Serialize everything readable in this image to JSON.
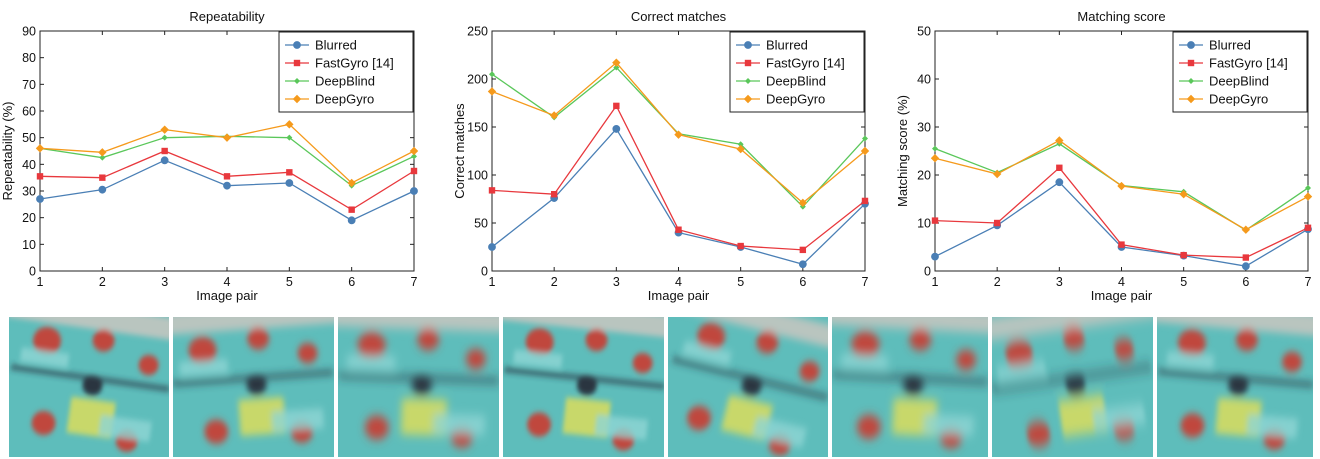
{
  "colors": {
    "Blurred": "#4a7fb5",
    "FastGyro [14]": "#e8383d",
    "DeepBlind": "#5ac75a",
    "DeepGyro": "#f59a1c"
  },
  "markers": {
    "Blurred": "circle",
    "FastGyro [14]": "square",
    "DeepBlind": "diamond-small",
    "DeepGyro": "diamond"
  },
  "chart_data": [
    {
      "type": "line",
      "title": "Repeatability",
      "xlabel": "Image pair",
      "ylabel": "Repeatability (%)",
      "x": [
        1,
        2,
        3,
        4,
        5,
        6,
        7
      ],
      "xlim": [
        1,
        7
      ],
      "ylim": [
        0,
        90
      ],
      "yticks": [
        0,
        10,
        20,
        30,
        40,
        50,
        60,
        70,
        80,
        90
      ],
      "legend_position": "top-right",
      "grid": false,
      "series": [
        {
          "name": "Blurred",
          "values": [
            27,
            30.5,
            41.5,
            32,
            33,
            19,
            30
          ]
        },
        {
          "name": "FastGyro [14]",
          "values": [
            35.5,
            35,
            45,
            35.5,
            37,
            23,
            37.5
          ]
        },
        {
          "name": "DeepBlind",
          "values": [
            46,
            42.5,
            50,
            50.5,
            50,
            32,
            43
          ]
        },
        {
          "name": "DeepGyro",
          "values": [
            46,
            44.5,
            53,
            50,
            55,
            33,
            45
          ]
        }
      ]
    },
    {
      "type": "line",
      "title": "Correct matches",
      "xlabel": "Image pair",
      "ylabel": "Correct matches",
      "x": [
        1,
        2,
        3,
        4,
        5,
        6,
        7
      ],
      "xlim": [
        1,
        7
      ],
      "ylim": [
        0,
        250
      ],
      "yticks": [
        0,
        50,
        100,
        150,
        200,
        250
      ],
      "legend_position": "top-right",
      "grid": false,
      "series": [
        {
          "name": "Blurred",
          "values": [
            25,
            76,
            148,
            40,
            25,
            7,
            70
          ]
        },
        {
          "name": "FastGyro [14]",
          "values": [
            84,
            80,
            172,
            43,
            26,
            22,
            73
          ]
        },
        {
          "name": "DeepBlind",
          "values": [
            205,
            160,
            212,
            143,
            132,
            67,
            138
          ]
        },
        {
          "name": "DeepGyro",
          "values": [
            187,
            162,
            217,
            142,
            127,
            71,
            125
          ]
        }
      ]
    },
    {
      "type": "line",
      "title": "Matching score",
      "xlabel": "Image pair",
      "ylabel": "Matching score (%)",
      "x": [
        1,
        2,
        3,
        4,
        5,
        6,
        7
      ],
      "xlim": [
        1,
        7
      ],
      "ylim": [
        0,
        50
      ],
      "yticks": [
        0,
        10,
        20,
        30,
        40,
        50
      ],
      "legend_position": "top-right",
      "grid": false,
      "series": [
        {
          "name": "Blurred",
          "values": [
            3,
            9.5,
            18.5,
            5,
            3.2,
            1,
            8.7
          ]
        },
        {
          "name": "FastGyro [14]",
          "values": [
            10.5,
            10,
            21.5,
            5.5,
            3.3,
            2.8,
            9
          ]
        },
        {
          "name": "DeepBlind",
          "values": [
            25.5,
            20.5,
            26.5,
            17.8,
            16.5,
            8.5,
            17.3
          ]
        },
        {
          "name": "DeepGyro",
          "values": [
            23.5,
            20.2,
            27.2,
            17.7,
            16,
            8.6,
            15.5
          ]
        }
      ]
    }
  ],
  "thumbnails": {
    "count": 8,
    "description_colors": {
      "background": "#5ebdbb",
      "paint_red": "#c0473c",
      "paint_yellow": "#c8d86a",
      "dark": "#2a3440"
    }
  }
}
